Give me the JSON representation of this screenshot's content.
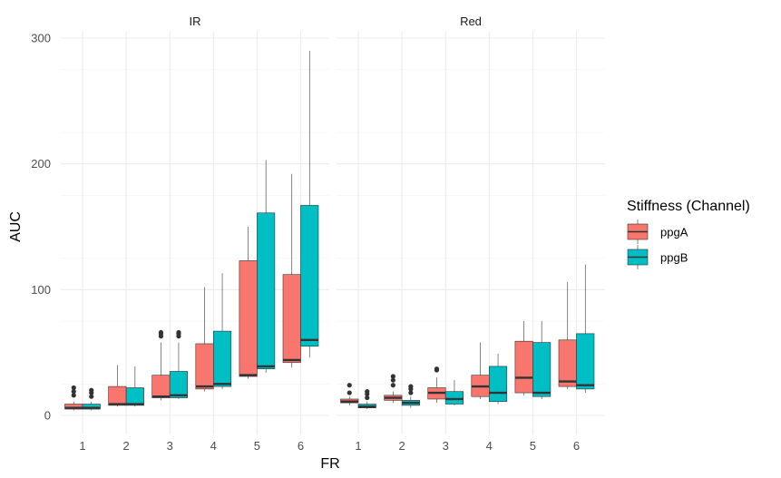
{
  "chart_data": {
    "type": "boxplot",
    "xlabel": "FR",
    "ylabel": "AUC",
    "ylim": [
      0,
      300
    ],
    "yticks": [
      0,
      100,
      200,
      300
    ],
    "categories": [
      "1",
      "2",
      "3",
      "4",
      "5",
      "6"
    ],
    "legend": {
      "title": "Stiffness (Channel)",
      "position": "right",
      "entries": [
        {
          "name": "ppgA",
          "color": "#F8766D"
        },
        {
          "name": "ppgB",
          "color": "#00BFC4"
        }
      ]
    },
    "grid": true,
    "facets": [
      {
        "label": "IR",
        "series": [
          {
            "name": "ppgA",
            "boxes": [
              {
                "category": "1",
                "min": 4,
                "q1": 5,
                "median": 6,
                "q3": 9,
                "max": 11,
                "outliers": [
                  16,
                  19,
                  22
                ]
              },
              {
                "category": "2",
                "min": 7,
                "q1": 8,
                "median": 9,
                "q3": 23,
                "max": 40,
                "outliers": []
              },
              {
                "category": "3",
                "min": 12,
                "q1": 14,
                "median": 15,
                "q3": 32,
                "max": 58,
                "outliers": [
                  63,
                  65,
                  66
                ]
              },
              {
                "category": "4",
                "min": 19,
                "q1": 21,
                "median": 23,
                "q3": 57,
                "max": 102,
                "outliers": []
              },
              {
                "category": "5",
                "min": 29,
                "q1": 31,
                "median": 32,
                "q3": 123,
                "max": 150,
                "outliers": []
              },
              {
                "category": "6",
                "min": 38,
                "q1": 42,
                "median": 44,
                "q3": 112,
                "max": 192,
                "outliers": []
              }
            ]
          },
          {
            "name": "ppgB",
            "boxes": [
              {
                "category": "1",
                "min": 4,
                "q1": 5,
                "median": 6,
                "q3": 9,
                "max": 11,
                "outliers": [
                  15,
                  18,
                  20
                ]
              },
              {
                "category": "2",
                "min": 7,
                "q1": 8,
                "median": 9,
                "q3": 22,
                "max": 39,
                "outliers": []
              },
              {
                "category": "3",
                "min": 13,
                "q1": 14,
                "median": 16,
                "q3": 35,
                "max": 58,
                "outliers": [
                  63,
                  65,
                  66
                ]
              },
              {
                "category": "4",
                "min": 21,
                "q1": 23,
                "median": 25,
                "q3": 67,
                "max": 113,
                "outliers": []
              },
              {
                "category": "5",
                "min": 34,
                "q1": 37,
                "median": 39,
                "q3": 161,
                "max": 203,
                "outliers": []
              },
              {
                "category": "6",
                "min": 46,
                "q1": 55,
                "median": 60,
                "q3": 167,
                "max": 290,
                "outliers": []
              }
            ]
          }
        ]
      },
      {
        "label": "Red",
        "series": [
          {
            "name": "ppgA",
            "boxes": [
              {
                "category": "1",
                "min": 8,
                "q1": 10,
                "median": 11,
                "q3": 13,
                "max": 15,
                "outliers": [
                  18,
                  24
                ]
              },
              {
                "category": "2",
                "min": 10,
                "q1": 12,
                "median": 14,
                "q3": 16,
                "max": 19,
                "outliers": [
                  24,
                  28,
                  31
                ]
              },
              {
                "category": "3",
                "min": 10,
                "q1": 13,
                "median": 18,
                "q3": 22,
                "max": 30,
                "outliers": [
                  36,
                  37
                ]
              },
              {
                "category": "4",
                "min": 13,
                "q1": 15,
                "median": 23,
                "q3": 32,
                "max": 58,
                "outliers": []
              },
              {
                "category": "5",
                "min": 16,
                "q1": 18,
                "median": 30,
                "q3": 59,
                "max": 75,
                "outliers": []
              },
              {
                "category": "6",
                "min": 21,
                "q1": 23,
                "median": 27,
                "q3": 60,
                "max": 106,
                "outliers": []
              }
            ]
          },
          {
            "name": "ppgB",
            "boxes": [
              {
                "category": "1",
                "min": 5,
                "q1": 6,
                "median": 7,
                "q3": 9,
                "max": 11,
                "outliers": [
                  14,
                  17,
                  19
                ]
              },
              {
                "category": "2",
                "min": 6,
                "q1": 8,
                "median": 10,
                "q3": 12,
                "max": 15,
                "outliers": [
                  18,
                  21,
                  23
                ]
              },
              {
                "category": "3",
                "min": 8,
                "q1": 9,
                "median": 13,
                "q3": 19,
                "max": 28,
                "outliers": []
              },
              {
                "category": "4",
                "min": 9,
                "q1": 11,
                "median": 18,
                "q3": 39,
                "max": 49,
                "outliers": []
              },
              {
                "category": "5",
                "min": 13,
                "q1": 15,
                "median": 18,
                "q3": 58,
                "max": 75,
                "outliers": []
              },
              {
                "category": "6",
                "min": 18,
                "q1": 21,
                "median": 24,
                "q3": 65,
                "max": 120,
                "outliers": []
              }
            ]
          }
        ]
      }
    ]
  }
}
